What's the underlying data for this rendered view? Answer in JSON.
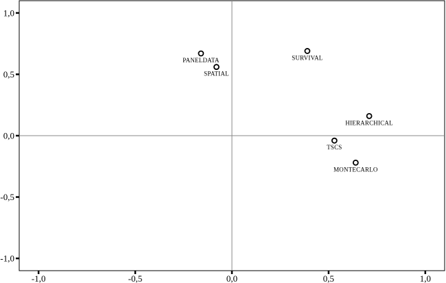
{
  "chart_data": {
    "type": "scatter",
    "title": "",
    "xlabel": "",
    "ylabel": "",
    "xlim": [
      -1.1,
      1.1
    ],
    "ylim": [
      -1.1,
      1.1
    ],
    "x_ticks": [
      -1.0,
      -0.5,
      0.0,
      0.5,
      1.0
    ],
    "y_ticks": [
      1.0,
      0.5,
      0.0,
      -0.5,
      -1.0
    ],
    "x_tick_labels": [
      "-1,0",
      "-0,5",
      "0,0",
      "0,5",
      "1,0"
    ],
    "y_tick_labels": [
      "1,0",
      "0,5",
      "0,0",
      "-0,5",
      "-1,0"
    ],
    "reference_lines": {
      "x": 0,
      "y": 0
    },
    "grid": false,
    "points": [
      {
        "label": "PANELDATA",
        "x": -0.16,
        "y": 0.67
      },
      {
        "label": "SPATIAL",
        "x": -0.08,
        "y": 0.56
      },
      {
        "label": "SURVIVAL",
        "x": 0.39,
        "y": 0.69
      },
      {
        "label": "HIERARCHICAL",
        "x": 0.71,
        "y": 0.16
      },
      {
        "label": "TSCS",
        "x": 0.53,
        "y": -0.04
      },
      {
        "label": "MONTECARLO",
        "x": 0.64,
        "y": -0.22
      }
    ]
  }
}
